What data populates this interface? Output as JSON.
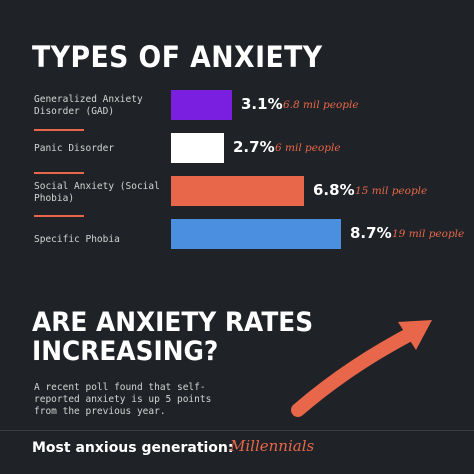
{
  "title": "TYPES OF ANXIETY",
  "chart_data": {
    "type": "bar",
    "orientation": "horizontal",
    "title": "TYPES OF ANXIETY",
    "categories": [
      "Generalized Anxiety Disorder (GAD)",
      "Panic Disorder",
      "Social Anxiety (Social Phobia)",
      "Specific Phobia"
    ],
    "values": [
      3.1,
      2.7,
      6.8,
      8.7
    ],
    "value_labels": [
      "3.1%",
      "2.7%",
      "6.8%",
      "8.7%"
    ],
    "people_labels": [
      "6.8 mil people",
      "6 mil people",
      "15 mil people",
      "19 mil people"
    ],
    "colors": [
      "#7a1fe0",
      "#ffffff",
      "#e8674a",
      "#4a8fe0"
    ],
    "xlim": [
      0,
      8.7
    ],
    "grid": false
  },
  "section2": {
    "heading_line1": "ARE ANXIETY RATES",
    "heading_line2": "INCREASING?",
    "paragraph": "A recent poll found that self-reported anxiety is up 5 points from the previous year.",
    "arrow_icon": "arrow-up-right-icon"
  },
  "footer": {
    "label": "Most anxious generation:",
    "value": "Millennials"
  },
  "colors": {
    "background": "#1f2226",
    "accent": "#e8674a"
  }
}
